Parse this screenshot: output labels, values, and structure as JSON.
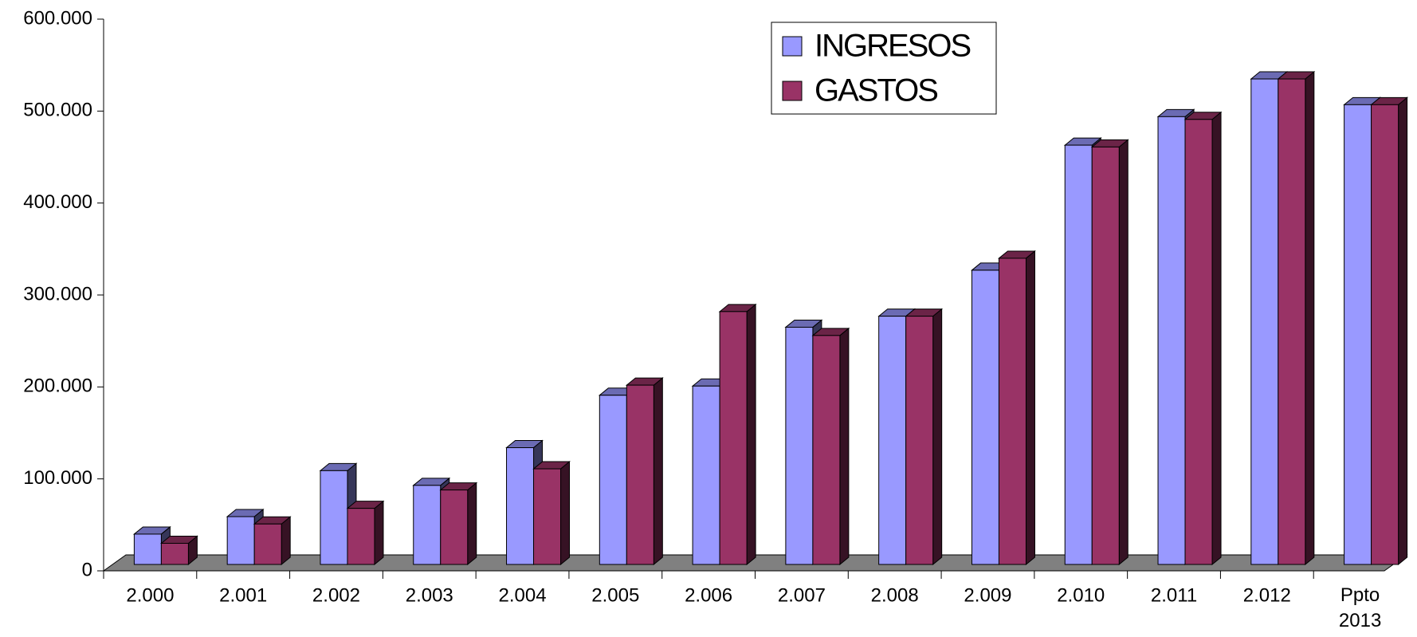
{
  "chart_data": {
    "type": "bar3d",
    "categories": [
      "2.000",
      "2.001",
      "2.002",
      "2.003",
      "2.004",
      "2.005",
      "2.006",
      "2.007",
      "2.008",
      "2.009",
      "2.010",
      "2.011",
      "2.012",
      "Ppto 2013"
    ],
    "series": [
      {
        "name": "INGRESOS",
        "color": "#9999ff",
        "values": [
          33000,
          52000,
          102000,
          86000,
          127000,
          184000,
          194000,
          258000,
          270000,
          320000,
          456000,
          487000,
          528000,
          500000
        ]
      },
      {
        "name": "GASTOS",
        "color": "#993366",
        "values": [
          23000,
          44000,
          61000,
          81000,
          104000,
          195000,
          275000,
          249000,
          270000,
          333000,
          454000,
          484000,
          528000,
          500000
        ]
      }
    ],
    "ylim": [
      0,
      600000
    ],
    "yticks": [
      {
        "value": 0,
        "label": "0"
      },
      {
        "value": 100000,
        "label": "100.000"
      },
      {
        "value": 200000,
        "label": "200.000"
      },
      {
        "value": 300000,
        "label": "300.000"
      },
      {
        "value": 400000,
        "label": "400.000"
      },
      {
        "value": 500000,
        "label": "500.000"
      },
      {
        "value": 600000,
        "label": "600.000"
      }
    ],
    "legend": "top-right"
  }
}
